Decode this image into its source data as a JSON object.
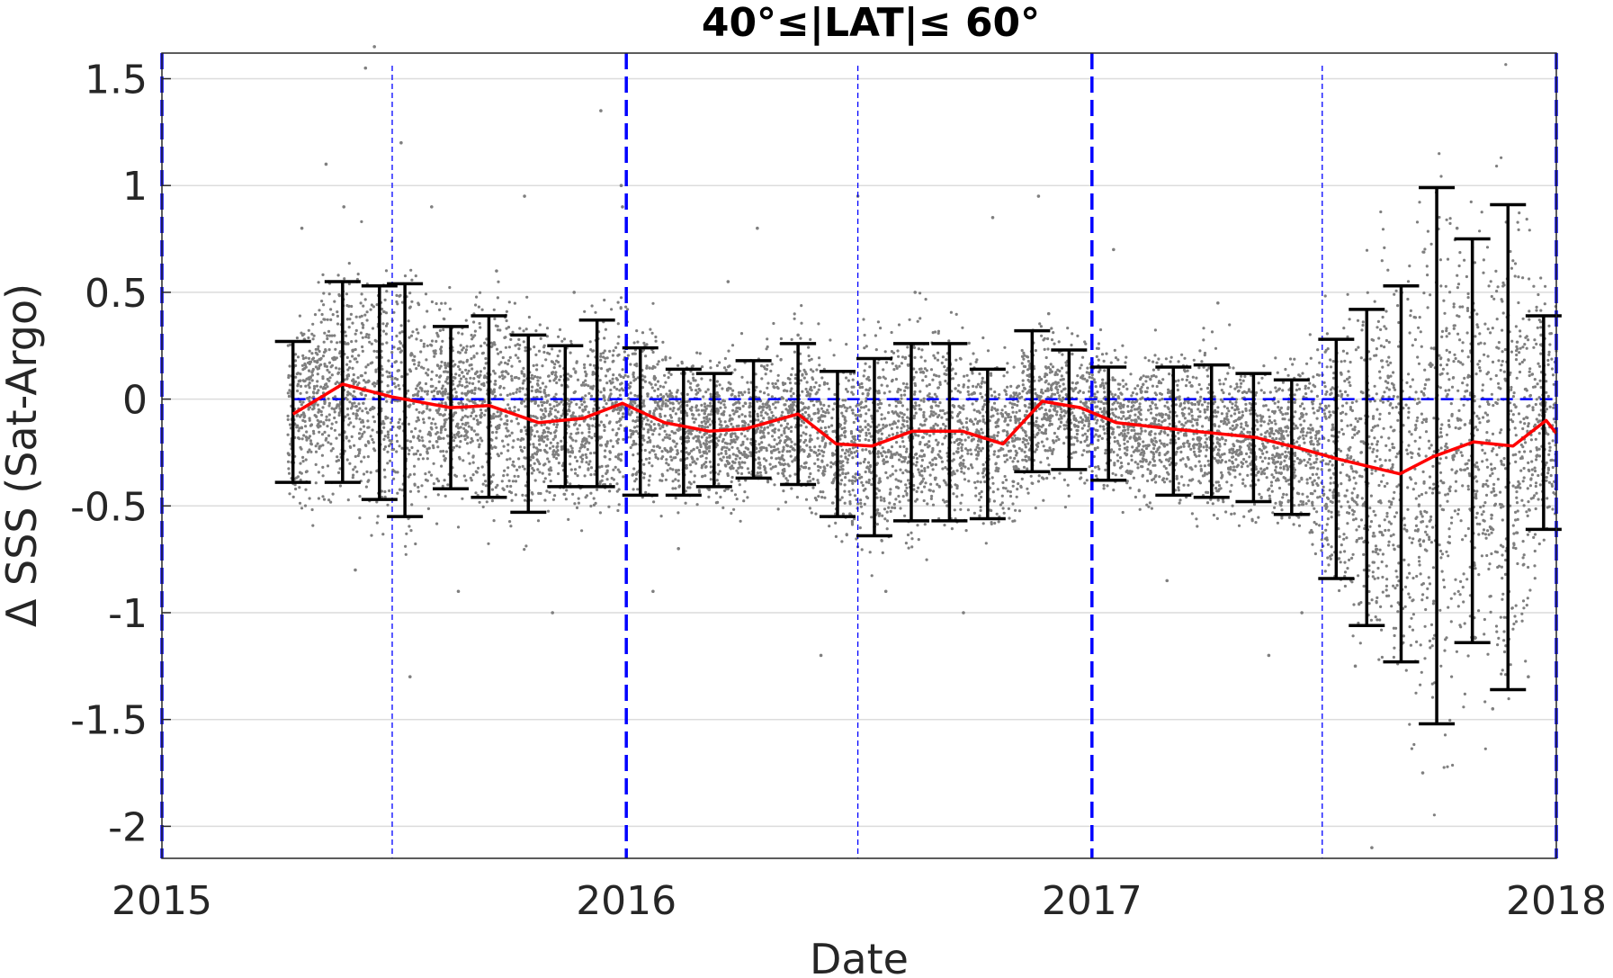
{
  "chart_data": {
    "type": "scatter",
    "title": "40°≤|LAT|≤ 60°",
    "xlabel": "Date",
    "ylabel": "Δ SSS (Sat-Argo)",
    "xlim": [
      "2015-01-01",
      "2018-01-01"
    ],
    "ylim": [
      -2.15,
      1.62
    ],
    "x_ticks": [
      "2015",
      "2016",
      "2017",
      "2018"
    ],
    "y_ticks": [
      1.5,
      1,
      0.5,
      0,
      -0.5,
      -1,
      -1.5,
      -2
    ],
    "y_tick_labels": [
      "1.5",
      "1",
      "0.5",
      "0",
      "-0.5",
      "-1",
      "-1.5",
      "-2"
    ],
    "grid": true,
    "colors": {
      "scatter": "#7f7f7f",
      "mean_line": "#ff0000",
      "error_bars": "#000000",
      "reference_lines": "#0000ff",
      "grid": "#dcdcdc"
    },
    "reference_lines": {
      "horizontal_zero": 0,
      "year_boundaries": [
        "2015-01-01",
        "2016-01-01",
        "2017-01-01",
        "2018-01-01"
      ],
      "mid_year": [
        "2015-07-01",
        "2016-07-01",
        "2017-07-01"
      ]
    },
    "scatter_points": [
      [
        "2015-04-21",
        0.8
      ],
      [
        "2015-04-23",
        0.28
      ],
      [
        "2015-05-10",
        1.1
      ],
      [
        "2015-05-12",
        0.55
      ],
      [
        "2015-05-24",
        0.9
      ],
      [
        "2015-06-02",
        -0.8
      ],
      [
        "2015-06-10",
        1.55
      ],
      [
        "2015-06-17",
        1.65
      ],
      [
        "2015-07-08",
        1.2
      ],
      [
        "2015-07-15",
        -1.3
      ],
      [
        "2015-08-01",
        0.9
      ],
      [
        "2015-08-22",
        -0.9
      ],
      [
        "2015-09-21",
        0.6
      ],
      [
        "2015-10-13",
        0.95
      ],
      [
        "2015-11-04",
        -1.0
      ],
      [
        "2015-11-21",
        0.5
      ],
      [
        "2015-12-12",
        1.35
      ],
      [
        "2015-12-28",
        1.0
      ],
      [
        "2015-12-29",
        0.9
      ],
      [
        "2016-01-22",
        -0.9
      ],
      [
        "2016-02-11",
        -0.7
      ],
      [
        "2016-03-21",
        0.55
      ],
      [
        "2016-04-13",
        0.8
      ],
      [
        "2016-05-15",
        0.3
      ],
      [
        "2016-06-02",
        -1.2
      ],
      [
        "2016-07-01",
        0.95
      ],
      [
        "2016-07-23",
        -0.9
      ],
      [
        "2016-08-15",
        0.5
      ],
      [
        "2016-09-22",
        -1.0
      ],
      [
        "2016-10-15",
        0.85
      ],
      [
        "2016-11-20",
        0.95
      ],
      [
        "2016-11-28",
        0.4
      ],
      [
        "2017-01-18",
        0.7
      ],
      [
        "2017-03-01",
        -0.85
      ],
      [
        "2017-04-10",
        0.45
      ],
      [
        "2017-05-20",
        -1.2
      ],
      [
        "2017-06-15",
        -1.0
      ],
      [
        "2017-07-27",
        -1.25
      ],
      [
        "2017-08-09",
        -2.1
      ],
      [
        "2017-09-18",
        -1.75
      ],
      [
        "2017-10-15",
        0.8
      ],
      [
        "2017-11-12",
        -1.45
      ],
      [
        "2017-12-20",
        0.3
      ],
      [
        "2017-12-10",
        -1.3
      ]
    ],
    "mean_line": [
      [
        "2015-04-14",
        -0.07
      ],
      [
        "2015-05-23",
        0.07
      ],
      [
        "2015-07-01",
        0.01
      ],
      [
        "2015-08-16",
        -0.04
      ],
      [
        "2015-09-15",
        -0.03
      ],
      [
        "2015-10-24",
        -0.11
      ],
      [
        "2015-11-28",
        -0.09
      ],
      [
        "2015-12-29",
        -0.02
      ],
      [
        "2016-01-31",
        -0.11
      ],
      [
        "2016-03-06",
        -0.15
      ],
      [
        "2016-04-03",
        -0.14
      ],
      [
        "2016-05-15",
        -0.07
      ],
      [
        "2016-06-14",
        -0.21
      ],
      [
        "2016-07-12",
        -0.22
      ],
      [
        "2016-08-13",
        -0.15
      ],
      [
        "2016-09-21",
        -0.15
      ],
      [
        "2016-10-23",
        -0.21
      ],
      [
        "2016-11-23",
        -0.01
      ],
      [
        "2016-12-23",
        -0.04
      ],
      [
        "2017-01-20",
        -0.11
      ],
      [
        "2017-03-05",
        -0.14
      ],
      [
        "2017-04-08",
        -0.16
      ],
      [
        "2017-05-10",
        -0.18
      ],
      [
        "2017-06-13",
        -0.23
      ],
      [
        "2017-07-13",
        -0.28
      ],
      [
        "2017-08-31",
        -0.35
      ],
      [
        "2017-09-26",
        -0.27
      ],
      [
        "2017-10-28",
        -0.2
      ],
      [
        "2017-11-28",
        -0.22
      ],
      [
        "2017-12-24",
        -0.1
      ],
      [
        "2018-01-01",
        -0.16
      ]
    ],
    "error_bars": [
      {
        "x": "2015-04-14",
        "low": -0.39,
        "high": 0.27
      },
      {
        "x": "2015-05-23",
        "low": -0.39,
        "high": 0.55
      },
      {
        "x": "2015-06-21",
        "low": -0.47,
        "high": 0.53
      },
      {
        "x": "2015-07-11",
        "low": -0.55,
        "high": 0.54
      },
      {
        "x": "2015-08-16",
        "low": -0.42,
        "high": 0.34
      },
      {
        "x": "2015-09-15",
        "low": -0.46,
        "high": 0.39
      },
      {
        "x": "2015-10-16",
        "low": -0.53,
        "high": 0.3
      },
      {
        "x": "2015-11-14",
        "low": -0.41,
        "high": 0.25
      },
      {
        "x": "2015-12-09",
        "low": -0.41,
        "high": 0.37
      },
      {
        "x": "2016-01-12",
        "low": -0.45,
        "high": 0.24
      },
      {
        "x": "2016-02-15",
        "low": -0.45,
        "high": 0.14
      },
      {
        "x": "2016-03-10",
        "low": -0.41,
        "high": 0.12
      },
      {
        "x": "2016-04-10",
        "low": -0.37,
        "high": 0.18
      },
      {
        "x": "2016-05-15",
        "low": -0.4,
        "high": 0.26
      },
      {
        "x": "2016-06-15",
        "low": -0.55,
        "high": 0.13
      },
      {
        "x": "2016-07-14",
        "low": -0.64,
        "high": 0.19
      },
      {
        "x": "2016-08-12",
        "low": -0.57,
        "high": 0.26
      },
      {
        "x": "2016-09-11",
        "low": -0.57,
        "high": 0.26
      },
      {
        "x": "2016-10-11",
        "low": -0.56,
        "high": 0.14
      },
      {
        "x": "2016-11-15",
        "low": -0.34,
        "high": 0.32
      },
      {
        "x": "2016-12-14",
        "low": -0.33,
        "high": 0.23
      },
      {
        "x": "2017-01-14",
        "low": -0.38,
        "high": 0.15
      },
      {
        "x": "2017-03-06",
        "low": -0.45,
        "high": 0.15
      },
      {
        "x": "2017-04-05",
        "low": -0.46,
        "high": 0.16
      },
      {
        "x": "2017-05-08",
        "low": -0.48,
        "high": 0.12
      },
      {
        "x": "2017-06-07",
        "low": -0.54,
        "high": 0.09
      },
      {
        "x": "2017-07-12",
        "low": -0.84,
        "high": 0.28
      },
      {
        "x": "2017-08-05",
        "low": -1.06,
        "high": 0.42
      },
      {
        "x": "2017-09-01",
        "low": -1.23,
        "high": 0.53
      },
      {
        "x": "2017-09-29",
        "low": -1.52,
        "high": 0.99
      },
      {
        "x": "2017-10-27",
        "low": -1.14,
        "high": 0.75
      },
      {
        "x": "2017-11-24",
        "low": -1.36,
        "high": 0.91
      },
      {
        "x": "2017-12-22",
        "low": -0.61,
        "high": 0.39
      }
    ]
  }
}
